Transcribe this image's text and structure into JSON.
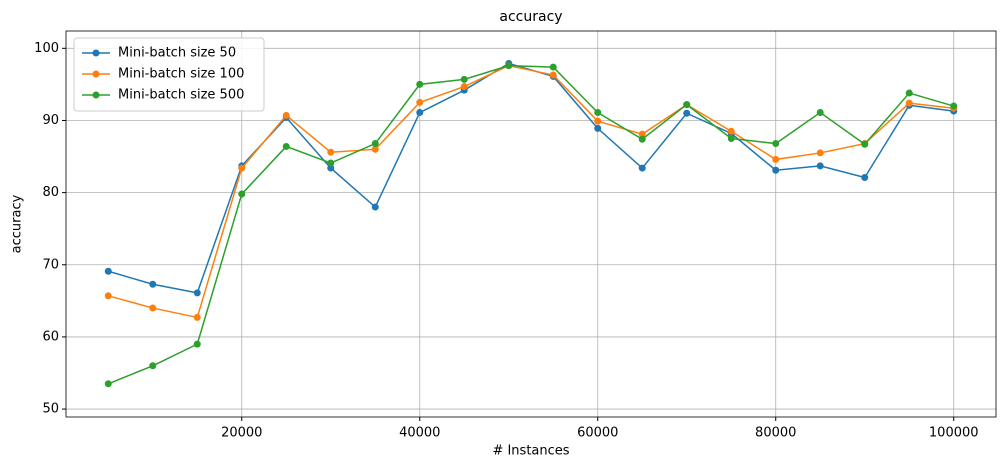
{
  "chart_data": {
    "type": "line",
    "title": "accuracy",
    "x_label": "# Instances",
    "y_label": "accuracy",
    "x": [
      5000,
      10000,
      15000,
      20000,
      25000,
      30000,
      35000,
      40000,
      45000,
      50000,
      55000,
      60000,
      65000,
      70000,
      75000,
      80000,
      85000,
      90000,
      95000,
      100000
    ],
    "series": [
      {
        "name": "Mini-batch size 50",
        "color": "#1f77b4",
        "values": [
          69.1,
          67.3,
          66.1,
          83.7,
          90.4,
          83.4,
          78.0,
          91.1,
          94.2,
          97.9,
          96.1,
          88.9,
          83.4,
          91.0,
          88.2,
          83.1,
          83.7,
          82.1,
          92.1,
          91.3
        ]
      },
      {
        "name": "Mini-batch size 100",
        "color": "#ff7f0e",
        "values": [
          65.7,
          64.0,
          62.7,
          83.4,
          90.7,
          85.6,
          86.0,
          92.5,
          94.7,
          97.6,
          96.3,
          89.9,
          88.1,
          92.2,
          88.5,
          84.6,
          85.5,
          86.8,
          92.4,
          91.7
        ]
      },
      {
        "name": "Mini-batch size 500",
        "color": "#2ca02c",
        "values": [
          53.5,
          56.0,
          59.0,
          79.8,
          86.4,
          84.1,
          86.8,
          95.0,
          95.7,
          97.6,
          97.4,
          91.1,
          87.4,
          92.2,
          87.5,
          86.8,
          91.1,
          86.7,
          93.8,
          92.0
        ]
      }
    ],
    "xlim": [
      250,
      104750
    ],
    "ylim": [
      48.9,
      102.4
    ],
    "xticks": [
      20000,
      40000,
      60000,
      80000,
      100000
    ],
    "yticks": [
      50,
      60,
      70,
      80,
      90,
      100
    ],
    "grid": true,
    "legend": "upper-left"
  }
}
